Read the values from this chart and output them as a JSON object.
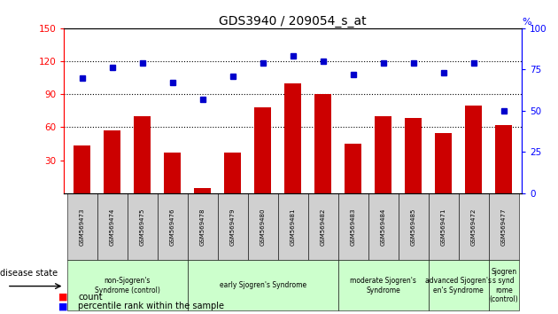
{
  "title": "GDS3940 / 209054_s_at",
  "samples": [
    "GSM569473",
    "GSM569474",
    "GSM569475",
    "GSM569476",
    "GSM569478",
    "GSM569479",
    "GSM569480",
    "GSM569481",
    "GSM569482",
    "GSM569483",
    "GSM569484",
    "GSM569485",
    "GSM569471",
    "GSM569472",
    "GSM569477"
  ],
  "counts": [
    43,
    57,
    70,
    37,
    5,
    37,
    78,
    100,
    90,
    45,
    70,
    68,
    55,
    80,
    62
  ],
  "percentiles": [
    70,
    76,
    79,
    67,
    57,
    71,
    79,
    83,
    80,
    72,
    79,
    79,
    73,
    79,
    50
  ],
  "groups": [
    {
      "label": "non-Sjogren's\nSyndrome (control)",
      "start": 0,
      "end": 4,
      "color": "#ccffcc"
    },
    {
      "label": "early Sjogren's Syndrome",
      "start": 4,
      "end": 9,
      "color": "#ccffcc"
    },
    {
      "label": "moderate Sjogren's\nSyndrome",
      "start": 9,
      "end": 12,
      "color": "#ccffcc"
    },
    {
      "label": "advanced Sjogren's\nen's Syndrome",
      "start": 12,
      "end": 14,
      "color": "#ccffcc"
    },
    {
      "label": "Sjogren\ns synd\nrome\n(control)",
      "start": 14,
      "end": 15,
      "color": "#ccffcc"
    }
  ],
  "ylim_left": [
    0,
    150
  ],
  "ylim_right": [
    0,
    100
  ],
  "yticks_left": [
    30,
    60,
    90,
    120,
    150
  ],
  "yticks_right": [
    0,
    25,
    50,
    75,
    100
  ],
  "bar_color": "#cc0000",
  "dot_color": "#0000cc",
  "bar_width": 0.55,
  "tick_area_color": "#d0d0d0",
  "background_color": "#ffffff"
}
